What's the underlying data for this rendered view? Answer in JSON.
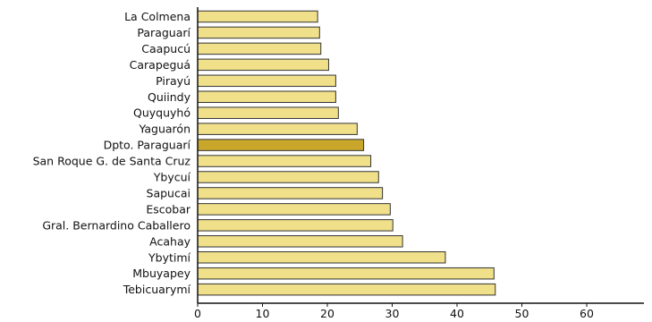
{
  "chart_data": {
    "type": "bar",
    "orientation": "horizontal",
    "categories": [
      "La Colmena",
      "Paraguarí",
      "Caapucú",
      "Carapeguá",
      "Pirayú",
      "Quiindy",
      "Quyquyhó",
      "Yaguarón",
      "Dpto. Paraguarí",
      "San Roque G. de Santa Cruz",
      "Ybycuí",
      "Sapucai",
      "Escobar",
      "Gral. Bernardino Caballero",
      "Acahay",
      "Ybytimí",
      "Mbuyapey",
      "Tebicuarymí"
    ],
    "values": [
      18.5,
      18.8,
      19.0,
      20.2,
      21.3,
      21.3,
      21.7,
      24.6,
      25.6,
      26.7,
      27.9,
      28.5,
      29.7,
      30.1,
      31.6,
      38.2,
      45.7,
      45.9
    ],
    "highlight_index": 8,
    "colors": {
      "bar": "#f0e08a",
      "highlight": "#c9a72a",
      "stroke": "#333333"
    },
    "xlim": [
      0,
      68
    ],
    "xticks": [
      "0",
      "10",
      "20",
      "30",
      "40",
      "50",
      "60"
    ],
    "tick_values": [
      0,
      10,
      20,
      30,
      40,
      50,
      60
    ],
    "grid": false,
    "title": "",
    "xlabel": "",
    "ylabel": ""
  }
}
